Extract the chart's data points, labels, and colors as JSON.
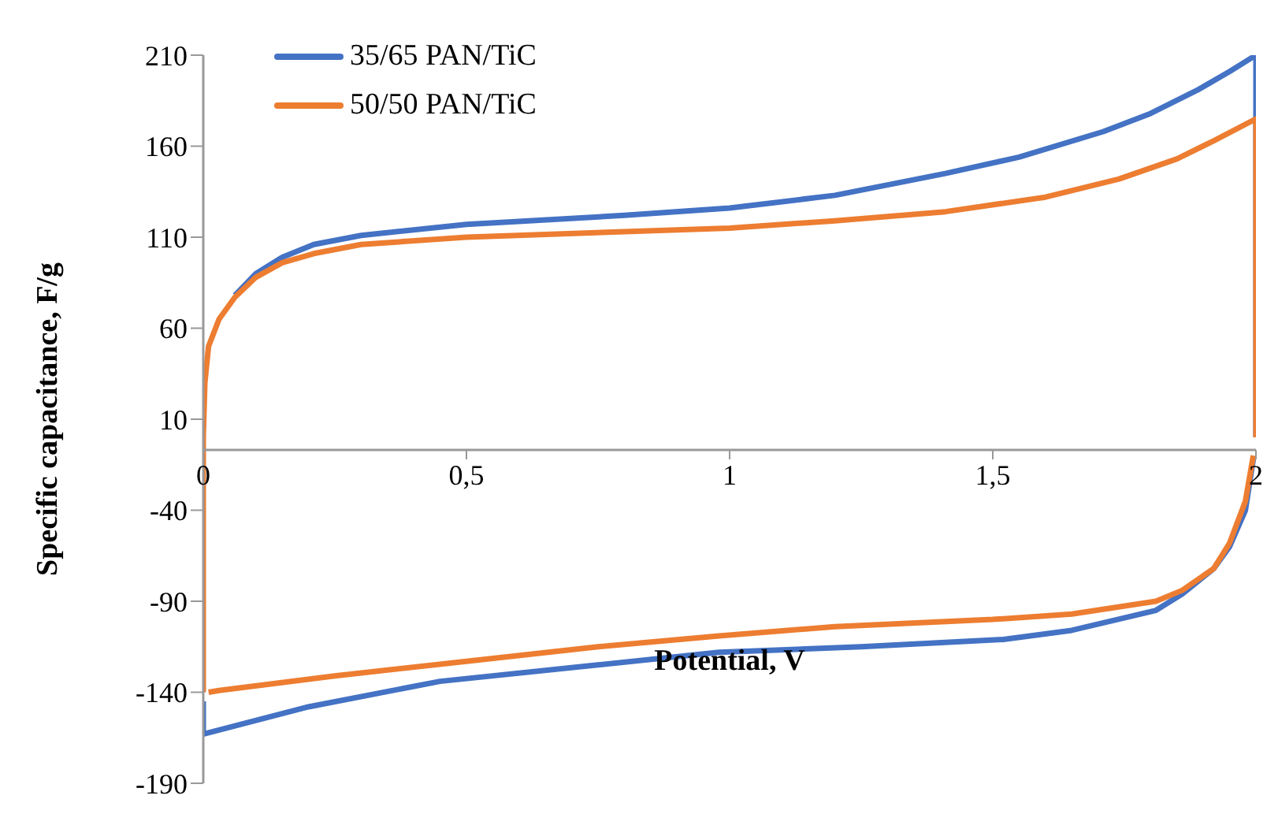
{
  "chart_data": {
    "type": "line",
    "xlabel": "Potential, V",
    "ylabel": "Specific capacitance, F/g",
    "xlim": [
      0,
      2
    ],
    "xticks": [
      0,
      {
        "value": 0.5,
        "label": "0,5"
      },
      1,
      {
        "value": 1.5,
        "label": "1,5"
      },
      2
    ],
    "ylim": [
      -190,
      210
    ],
    "yticks": [
      -190,
      -140,
      -90,
      -40,
      10,
      60,
      110,
      160,
      210
    ],
    "grid": false,
    "legend": "top left",
    "marker": "none",
    "line_style": "solid",
    "series": [
      {
        "name": "35/65 PAN/TiC",
        "color": "#4472c4",
        "x": [
          0.06,
          0.1,
          0.15,
          0.21,
          0.3,
          0.5,
          0.8,
          1.0,
          1.2,
          1.41,
          1.55,
          1.71,
          1.8,
          1.89,
          1.95,
          2,
          2
        ],
        "values": [
          78,
          90,
          99,
          106,
          111,
          117,
          122,
          126,
          133,
          145,
          154,
          168,
          178,
          191,
          201,
          210,
          0
        ]
      },
      {
        "color": "#4472c4",
        "x": [
          0,
          0,
          0.2,
          0.45,
          0.75,
          0.98,
          1.25,
          1.52,
          1.65,
          1.81,
          1.86,
          1.92,
          1.95,
          1.98,
          1.995
        ],
        "values": [
          -145,
          -163,
          -148,
          -134,
          -125,
          -118,
          -115,
          -111,
          -106,
          -95,
          -86,
          -72,
          -60,
          -40,
          -12
        ]
      },
      {
        "name": "50/50 PAN/TiC",
        "color": "#ed7d31",
        "x": [
          0,
          0,
          0.003,
          0.01,
          0.03,
          0.06,
          0.1,
          0.15,
          0.21,
          0.3,
          0.5,
          0.8,
          1.0,
          1.2,
          1.41,
          1.6,
          1.74,
          1.85,
          1.92,
          2,
          2
        ],
        "values": [
          -140,
          0,
          30,
          50,
          65,
          77,
          88,
          96,
          101,
          106,
          110,
          113,
          115,
          119,
          124,
          132,
          142,
          153,
          163,
          175,
          0
        ]
      },
      {
        "color": "#ed7d31",
        "x": [
          0.01,
          0.03,
          0.25,
          0.5,
          0.75,
          0.98,
          1.2,
          1.5,
          1.65,
          1.81,
          1.86,
          1.92,
          1.95,
          1.98,
          1.995
        ],
        "values": [
          -140,
          -139,
          -131,
          -123,
          -115,
          -109,
          -104,
          -100,
          -97,
          -90,
          -84,
          -72,
          -58,
          -35,
          -10
        ]
      }
    ]
  }
}
